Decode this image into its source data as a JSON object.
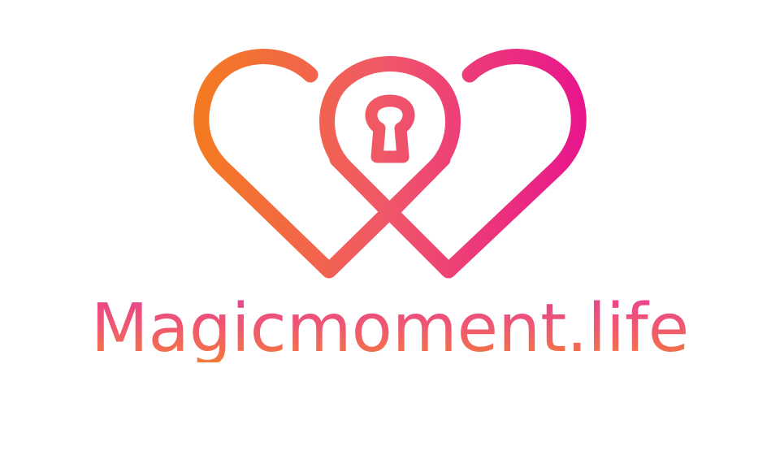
{
  "brand": {
    "name": "Magicmoment.life"
  },
  "icons": {
    "logo": "double-heart-keyhole-icon"
  },
  "colors": {
    "gradient_start": "#f47a21",
    "gradient_mid": "#f0566a",
    "gradient_end": "#e8168c",
    "text_top": "#e8428f",
    "text_bottom": "#f47a3a",
    "background": "#ffffff"
  }
}
